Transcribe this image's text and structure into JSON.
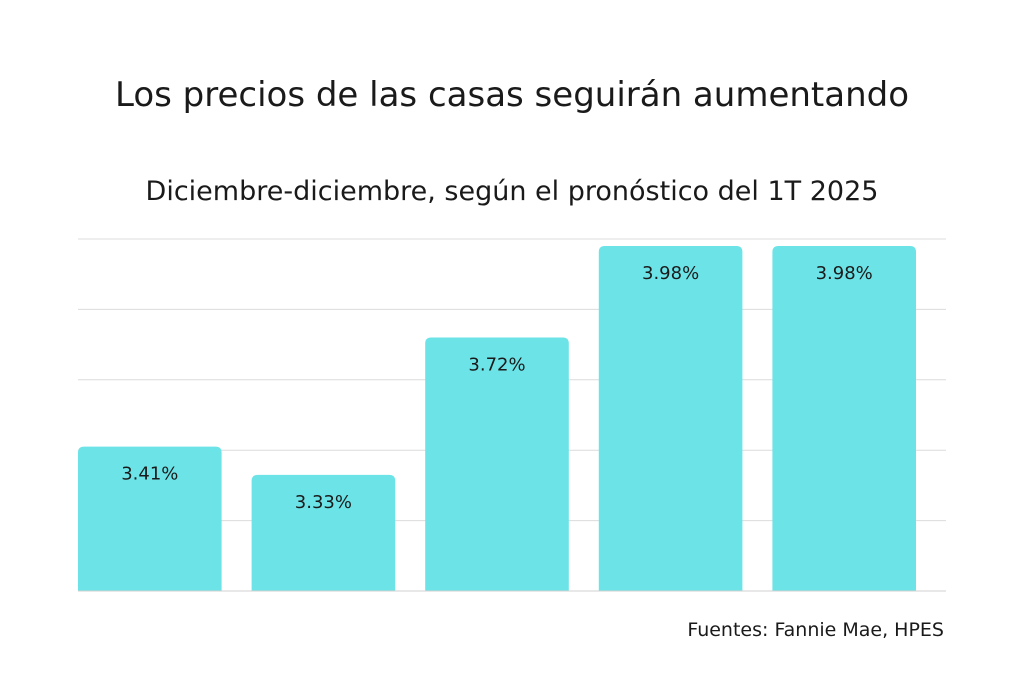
{
  "chart_data": {
    "type": "bar",
    "title": "Los precios de las casas seguirán aumentando",
    "subtitle": "Diciembre-diciembre, según el pronóstico del 1T 2025",
    "categories": [
      "",
      "",
      "",
      "",
      ""
    ],
    "values": [
      3.41,
      3.33,
      3.72,
      3.98,
      3.98
    ],
    "value_labels": [
      "3.41%",
      "3.33%",
      "3.72%",
      "3.98%",
      "3.98%"
    ],
    "xlabel": "",
    "ylabel": "",
    "ylim": [
      3.0,
      4.0
    ],
    "grid": true,
    "bar_color": "#6be3e7",
    "source": "Fuentes: Fannie Mae, HPES"
  }
}
